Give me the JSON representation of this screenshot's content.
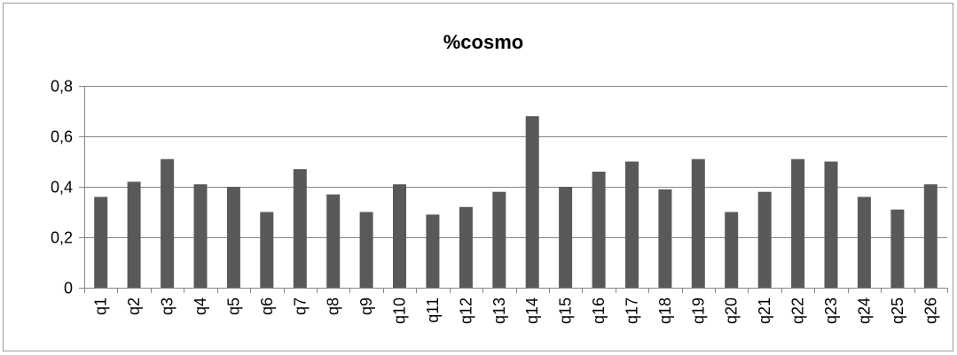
{
  "chart_data": {
    "type": "bar",
    "title": "%cosmo",
    "xlabel": "",
    "ylabel": "",
    "categories": [
      "q1",
      "q2",
      "q3",
      "q4",
      "q5",
      "q6",
      "q7",
      "q8",
      "q9",
      "q10",
      "q11",
      "q12",
      "q13",
      "q14",
      "q15",
      "q16",
      "q17",
      "q18",
      "q19",
      "q20",
      "q21",
      "q22",
      "q23",
      "q24",
      "q25",
      "q26"
    ],
    "values": [
      0.36,
      0.42,
      0.51,
      0.41,
      0.4,
      0.3,
      0.47,
      0.37,
      0.3,
      0.41,
      0.29,
      0.32,
      0.38,
      0.68,
      0.4,
      0.46,
      0.5,
      0.39,
      0.51,
      0.3,
      0.38,
      0.51,
      0.5,
      0.36,
      0.31,
      0.41
    ],
    "ylim": [
      0,
      0.8
    ],
    "yticks": [
      "0",
      "0,2",
      "0,4",
      "0,6",
      "0,8"
    ],
    "ytick_values": [
      0,
      0.2,
      0.4,
      0.6,
      0.8
    ],
    "grid": true,
    "legend": "none",
    "bar_color": "#595959",
    "grid_color": "#868686"
  }
}
